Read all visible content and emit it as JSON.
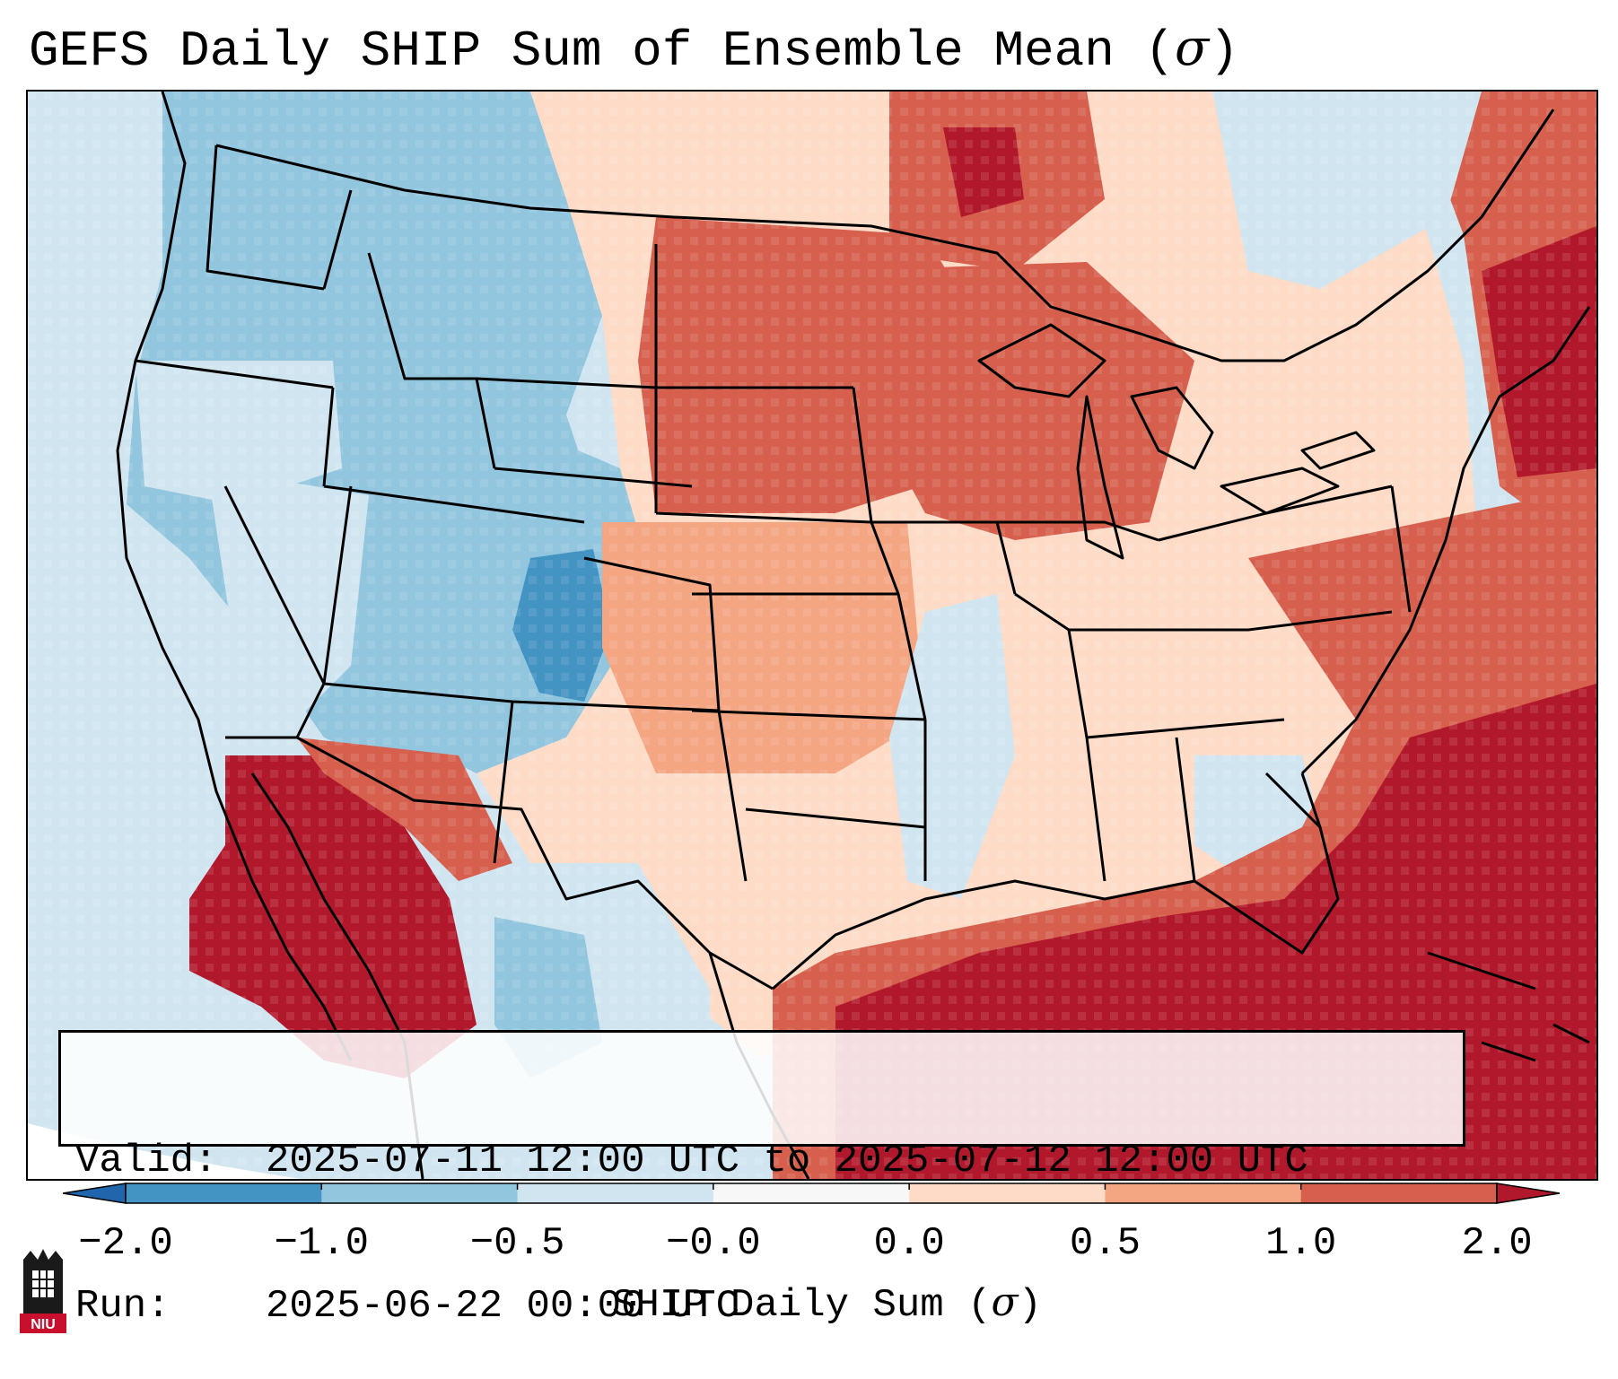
{
  "title": {
    "prefix": "GEFS Daily SHIP Sum of Ensemble Mean (",
    "symbol": "σ",
    "suffix": ")"
  },
  "info": {
    "valid_key": "Valid:",
    "valid_value": "2025-07-11 12:00 UTC to 2025-07-12 12:00 UTC",
    "run_key": "Run:",
    "run_value": "2025-06-22 00:00 UTC"
  },
  "colorbar": {
    "label_prefix": "SHIP Daily Sum (",
    "label_symbol": "σ",
    "label_suffix": ")",
    "ticks": [
      "−2.0",
      "−1.0",
      "−0.5",
      "−0.0",
      "0.0",
      "0.5",
      "1.0",
      "2.0"
    ],
    "bins": [
      {
        "from": -2.0,
        "to": -1.0,
        "color": "#4393c3"
      },
      {
        "from": -1.0,
        "to": -0.5,
        "color": "#92c5de"
      },
      {
        "from": -0.5,
        "to": -0.0,
        "color": "#d1e5f0"
      },
      {
        "from": -0.0,
        "to": 0.0,
        "color": "#f7f7f7"
      },
      {
        "from": 0.0,
        "to": 0.5,
        "color": "#fddbc7"
      },
      {
        "from": 0.5,
        "to": 1.0,
        "color": "#f4a582"
      },
      {
        "from": 1.0,
        "to": 2.0,
        "color": "#d6604d"
      }
    ],
    "under_color": "#2166ac",
    "over_color": "#b2182b"
  },
  "map": {
    "projection": "Lambert conformal (CONUS)",
    "regions": [
      {
        "name": "Pacific Northwest",
        "level": "-1.0 to -0.5"
      },
      {
        "name": "Great Basin / Rockies",
        "level": "-1.0 to -0.5"
      },
      {
        "name": "Northern Plains",
        "level": "1.0 to 2.0"
      },
      {
        "name": "Central Plains",
        "level": "0.5 to 1.0"
      },
      {
        "name": "Texas",
        "level": "0.0 to 0.5"
      },
      {
        "name": "Southeast",
        "level": "0.0 to 0.5"
      },
      {
        "name": "Gulf of Mexico",
        "level": "> 2.0"
      },
      {
        "name": "Western Atlantic",
        "level": "> 2.0"
      },
      {
        "name": "Gulf of California / Baja",
        "level": "> 2.0"
      },
      {
        "name": "Pacific Ocean",
        "level": "-0.5 to -0.0"
      }
    ]
  },
  "logo": {
    "text": "NIU"
  }
}
